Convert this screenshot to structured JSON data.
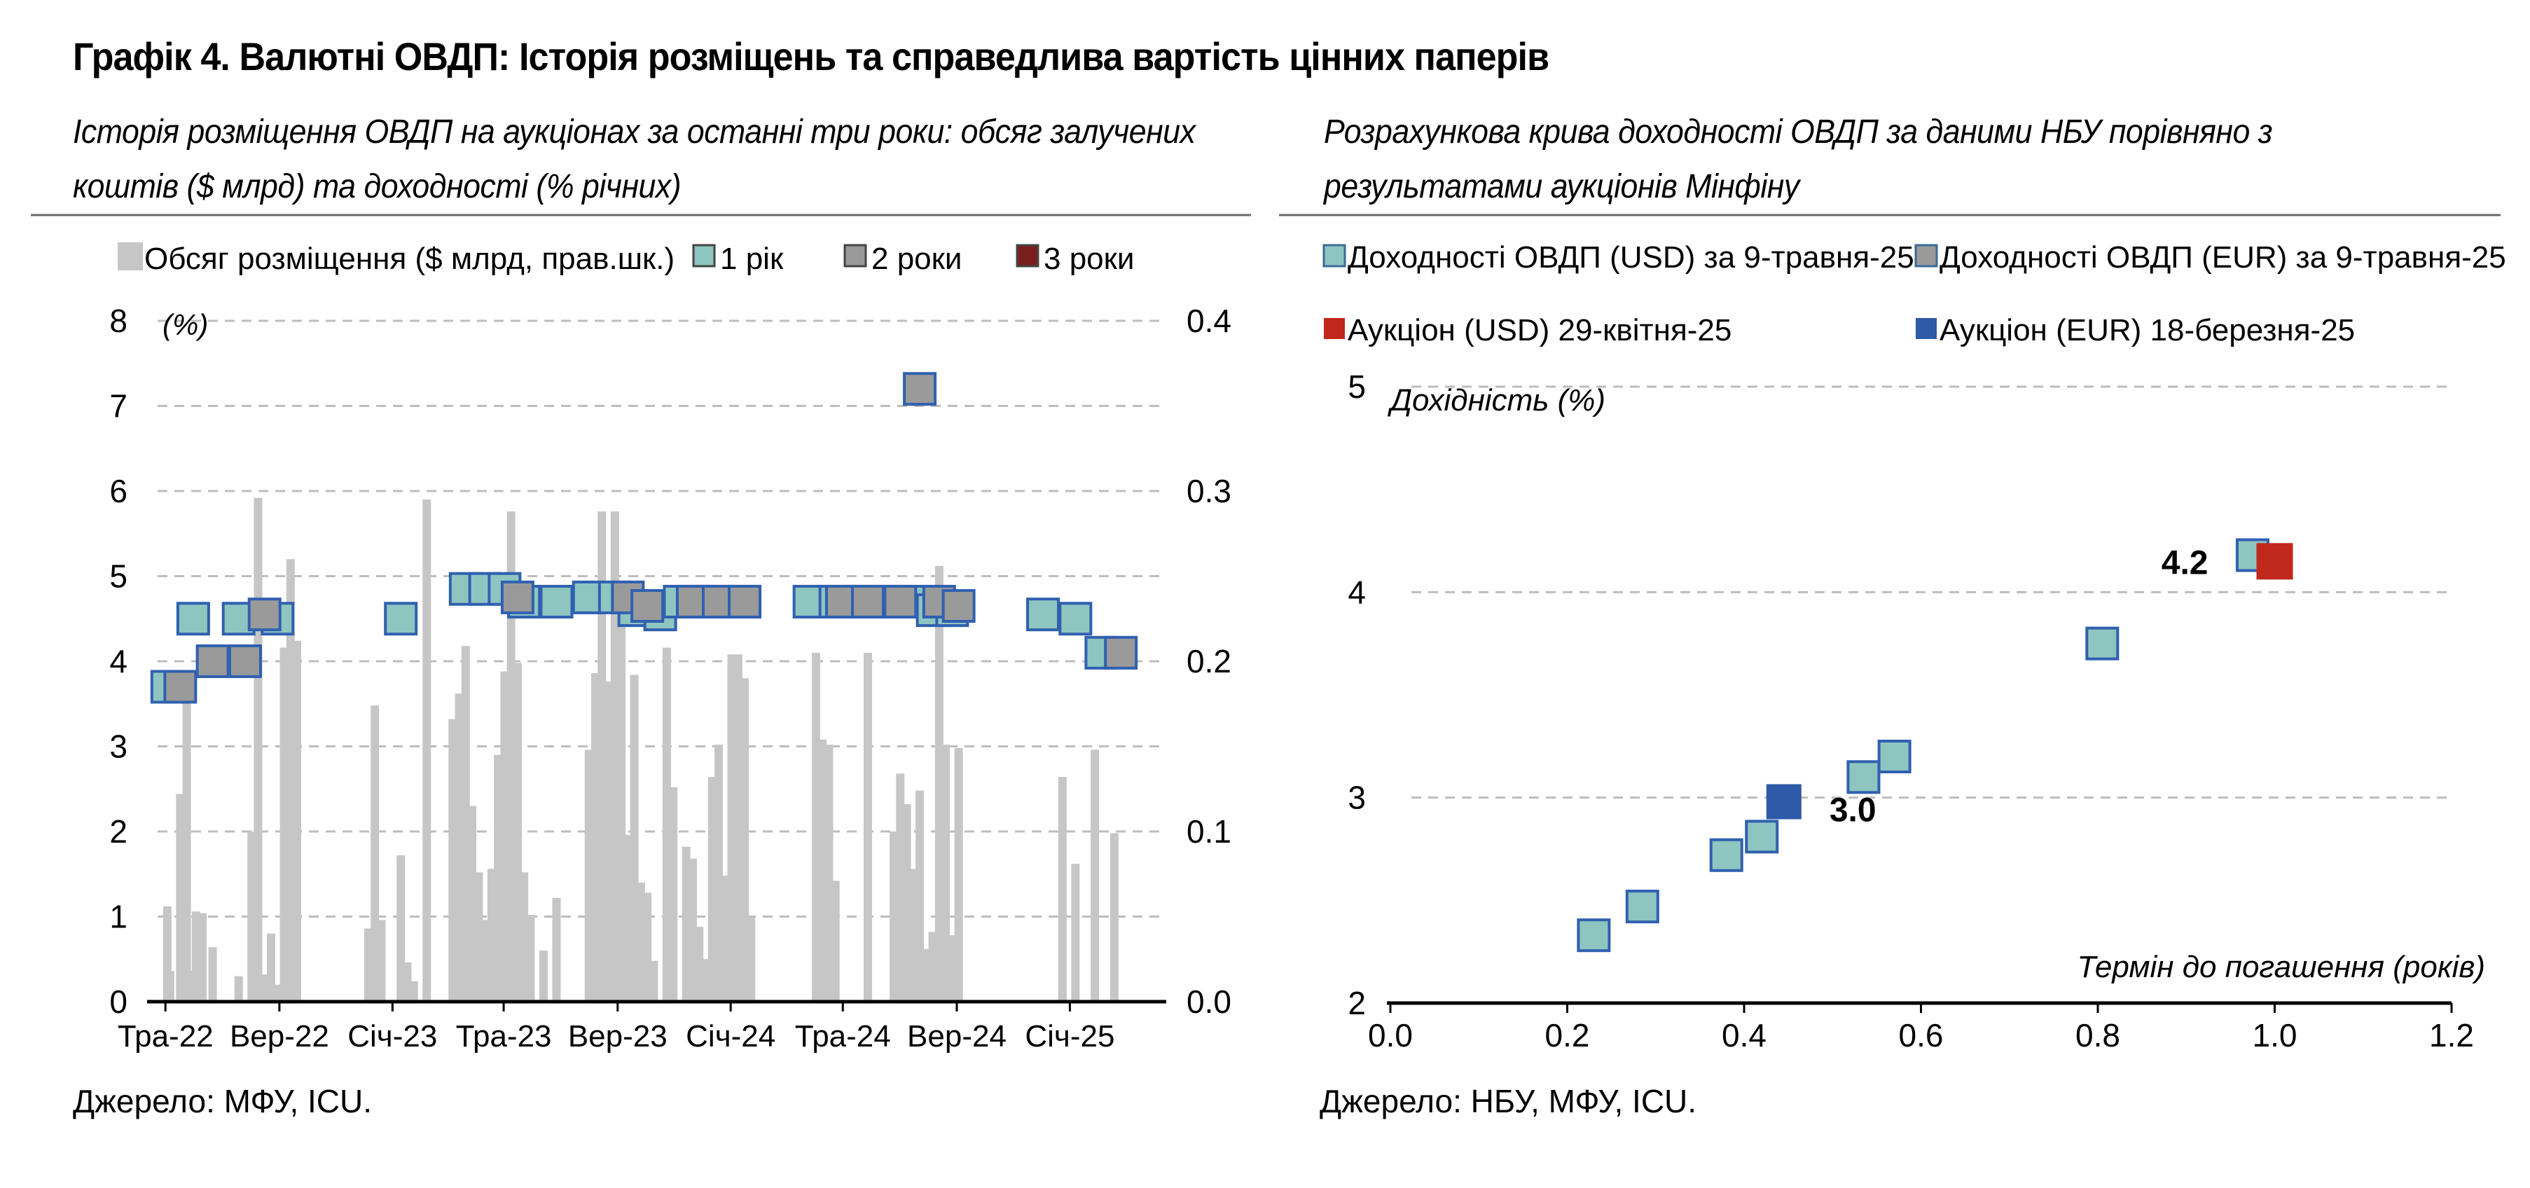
{
  "title": "Графік 4. Валютні ОВДП: Історія розміщень та справедлива вартість цінних паперів",
  "left_subtitle": {
    "line1": "Історія розміщення ОВДП на аукціонах за останні три роки: обсяг залучених",
    "line2": "коштів ($ млрд) та доходності (% річних)"
  },
  "right_subtitle": {
    "line1": "Розрахункова крива доходності ОВДП за даними НБУ порівняно з",
    "line2": "результатами аукціонів Мінфіну"
  },
  "left_source": "Джерело: МФУ, ICU.",
  "right_source": "Джерело: НБУ, МФУ, ICU.",
  "colors": {
    "bar": "#c6c6c6",
    "one_year": "#8ec5c0",
    "two_year": "#9a9a9a",
    "three_year": "#7b1e1e",
    "marker_edge": "#3060b0",
    "auction_usd": "#c0281c",
    "auction_eur": "#2e5aa8",
    "grid": "#bdbdbd"
  },
  "chart_data": [
    {
      "type": "bar+scatter",
      "legend": [
        "Обсяг розміщення ($ млрд, прав.шк.)",
        "1 рік",
        "2 роки",
        "3 роки"
      ],
      "legend_placement": "top",
      "ylabel": "(%)",
      "ylim": [
        0,
        8
      ],
      "y_ticks": [
        "0",
        "1",
        "2",
        "3",
        "4",
        "5",
        "6",
        "7",
        "8"
      ],
      "y2lim": [
        0,
        0.4
      ],
      "y2_ticks": [
        "0.0",
        "0.1",
        "0.2",
        "0.3",
        "0.4"
      ],
      "x_tick_labels": [
        "Тра-22",
        "Вер-22",
        "Січ-23",
        "Тра-23",
        "Вер-23",
        "Січ-24",
        "Тра-24",
        "Вер-24",
        "Січ-25"
      ],
      "x_tick_dates": [
        "2022-05",
        "2022-09",
        "2023-01",
        "2023-05",
        "2023-09",
        "2024-01",
        "2024-05",
        "2024-09",
        "2025-01"
      ],
      "grid": true,
      "series": [
        {
          "name": "Обсяг розміщення ($ млрд, прав.шк.)",
          "axis": "right",
          "kind": "bar",
          "date": [
            "2022-05-03",
            "2022-05-06",
            "2022-05-17",
            "2022-05-20",
            "2022-05-24",
            "2022-05-31",
            "2022-06-03",
            "2022-06-10",
            "2022-06-21",
            "2022-07-19",
            "2022-08-02",
            "2022-08-09",
            "2022-08-16",
            "2022-08-23",
            "2022-08-30",
            "2022-09-06",
            "2022-09-13",
            "2022-09-20",
            "2022-12-06",
            "2022-12-13",
            "2022-12-20",
            "2023-01-10",
            "2023-01-17",
            "2023-01-24",
            "2023-02-07",
            "2023-03-07",
            "2023-03-14",
            "2023-03-21",
            "2023-03-28",
            "2023-04-04",
            "2023-04-11",
            "2023-04-18",
            "2023-04-25",
            "2023-05-02",
            "2023-05-09",
            "2023-05-16",
            "2023-05-23",
            "2023-05-30",
            "2023-06-13",
            "2023-06-27",
            "2023-08-01",
            "2023-08-08",
            "2023-08-15",
            "2023-08-22",
            "2023-08-29",
            "2023-09-05",
            "2023-09-12",
            "2023-09-19",
            "2023-09-26",
            "2023-10-03",
            "2023-10-10",
            "2023-10-24",
            "2023-10-31",
            "2023-11-14",
            "2023-11-21",
            "2023-11-28",
            "2023-12-05",
            "2023-12-12",
            "2023-12-19",
            "2023-12-26",
            "2024-01-02",
            "2024-01-09",
            "2024-01-16",
            "2024-01-23",
            "2024-04-02",
            "2024-04-09",
            "2024-04-16",
            "2024-04-23",
            "2024-05-28",
            "2024-06-25",
            "2024-07-02",
            "2024-07-09",
            "2024-07-16",
            "2024-07-23",
            "2024-07-30",
            "2024-08-06",
            "2024-08-13",
            "2024-08-20",
            "2024-08-27",
            "2024-09-03",
            "2024-12-24",
            "2025-01-07",
            "2025-01-28",
            "2025-02-18"
          ],
          "values": [
            0.056,
            0.018,
            0.122,
            0.048,
            0.182,
            0.018,
            0.053,
            0.052,
            0.032,
            0.015,
            0.1,
            0.296,
            0.016,
            0.04,
            0.01,
            0.208,
            0.26,
            0.212,
            0.043,
            0.174,
            0.048,
            0.086,
            0.023,
            0.012,
            0.295,
            0.166,
            0.181,
            0.209,
            0.115,
            0.076,
            0.048,
            0.078,
            0.145,
            0.194,
            0.288,
            0.199,
            0.076,
            0.051,
            0.03,
            0.061,
            0.148,
            0.193,
            0.288,
            0.188,
            0.288,
            0.226,
            0.098,
            0.192,
            0.07,
            0.064,
            0.024,
            0.208,
            0.126,
            0.091,
            0.084,
            0.044,
            0.025,
            0.132,
            0.151,
            0.074,
            0.204,
            0.204,
            0.19,
            0.05,
            0.205,
            0.154,
            0.151,
            0.071,
            0.205,
            0.1,
            0.134,
            0.116,
            0.078,
            0.124,
            0.031,
            0.041,
            0.256,
            0.151,
            0.039,
            0.149,
            0.132,
            0.081,
            0.148,
            0.099
          ]
        },
        {
          "name": "1 рік",
          "axis": "left",
          "kind": "scatter",
          "date": [
            "2022-05-03",
            "2022-05-31",
            "2022-07-19",
            "2022-08-30",
            "2023-01-10",
            "2023-03-21",
            "2023-04-11",
            "2023-05-02",
            "2023-05-23",
            "2023-06-27",
            "2023-08-01",
            "2023-08-29",
            "2023-09-19",
            "2023-10-17",
            "2023-11-07",
            "2023-11-28",
            "2023-12-12",
            "2024-01-16",
            "2024-03-26",
            "2024-04-23",
            "2024-05-21",
            "2024-06-18",
            "2024-07-16",
            "2024-08-06",
            "2024-08-27",
            "2024-12-03",
            "2025-01-07",
            "2025-02-04"
          ],
          "values": [
            3.7,
            4.5,
            4.5,
            4.5,
            4.5,
            4.85,
            4.85,
            4.85,
            4.7,
            4.7,
            4.75,
            4.75,
            4.6,
            4.55,
            4.7,
            4.7,
            4.7,
            4.7,
            4.7,
            4.7,
            4.7,
            4.7,
            4.7,
            4.6,
            4.6,
            4.55,
            4.5,
            4.1
          ]
        },
        {
          "name": "2 роки",
          "axis": "left",
          "kind": "scatter",
          "date": [
            "2022-05-17",
            "2022-06-21",
            "2022-07-26",
            "2022-08-16",
            "2023-05-16",
            "2023-09-12",
            "2023-10-03",
            "2023-11-21",
            "2023-12-19",
            "2024-01-16",
            "2024-04-30",
            "2024-05-28",
            "2024-07-02",
            "2024-07-23",
            "2024-08-13",
            "2024-09-03",
            "2025-02-25"
          ],
          "values": [
            3.7,
            4.0,
            4.0,
            4.55,
            4.75,
            4.75,
            4.65,
            4.7,
            4.7,
            4.7,
            4.7,
            4.7,
            4.7,
            7.2,
            4.7,
            4.65,
            4.1
          ]
        },
        {
          "name": "3 роки",
          "axis": "left",
          "kind": "scatter",
          "date": [],
          "values": []
        }
      ]
    },
    {
      "type": "scatter",
      "legend": [
        "Доходності ОВДП (USD) за 9-травня-25",
        "Доходності ОВДП (EUR) за 9-травня-25",
        "Аукціон (USD) 29-квітня-25",
        "Аукціон (EUR) 18-березня-25"
      ],
      "legend_placement": "top",
      "xlabel": "Термін до погашення (років)",
      "ylabel": "Дохідність (%)",
      "xlim": [
        0,
        1.2
      ],
      "ylim": [
        2,
        5
      ],
      "x_ticks": [
        "0.0",
        "0.2",
        "0.4",
        "0.6",
        "0.8",
        "1.0",
        "1.2"
      ],
      "y_ticks": [
        "2",
        "3",
        "4",
        "5"
      ],
      "grid": true,
      "annotations": [
        {
          "text": "4.2",
          "x": 1.0,
          "y": 4.15
        },
        {
          "text": "3.0",
          "x": 0.445,
          "y": 2.98
        }
      ],
      "series": [
        {
          "name": "Доходності ОВДП (USD) за 9-травня-25",
          "x": [
            0.23,
            0.285,
            0.38,
            0.42,
            0.535,
            0.57,
            0.805,
            0.975
          ],
          "y": [
            2.33,
            2.47,
            2.72,
            2.81,
            3.1,
            3.2,
            3.75,
            4.18
          ]
        },
        {
          "name": "Доходності ОВДП (EUR) за 9-травня-25",
          "x": [],
          "y": []
        },
        {
          "name": "Аукціон (USD) 29-квітня-25",
          "x": [
            1.0
          ],
          "y": [
            4.15
          ]
        },
        {
          "name": "Аукціон (EUR) 18-березня-25",
          "x": [
            0.445
          ],
          "y": [
            2.98
          ]
        }
      ]
    }
  ]
}
